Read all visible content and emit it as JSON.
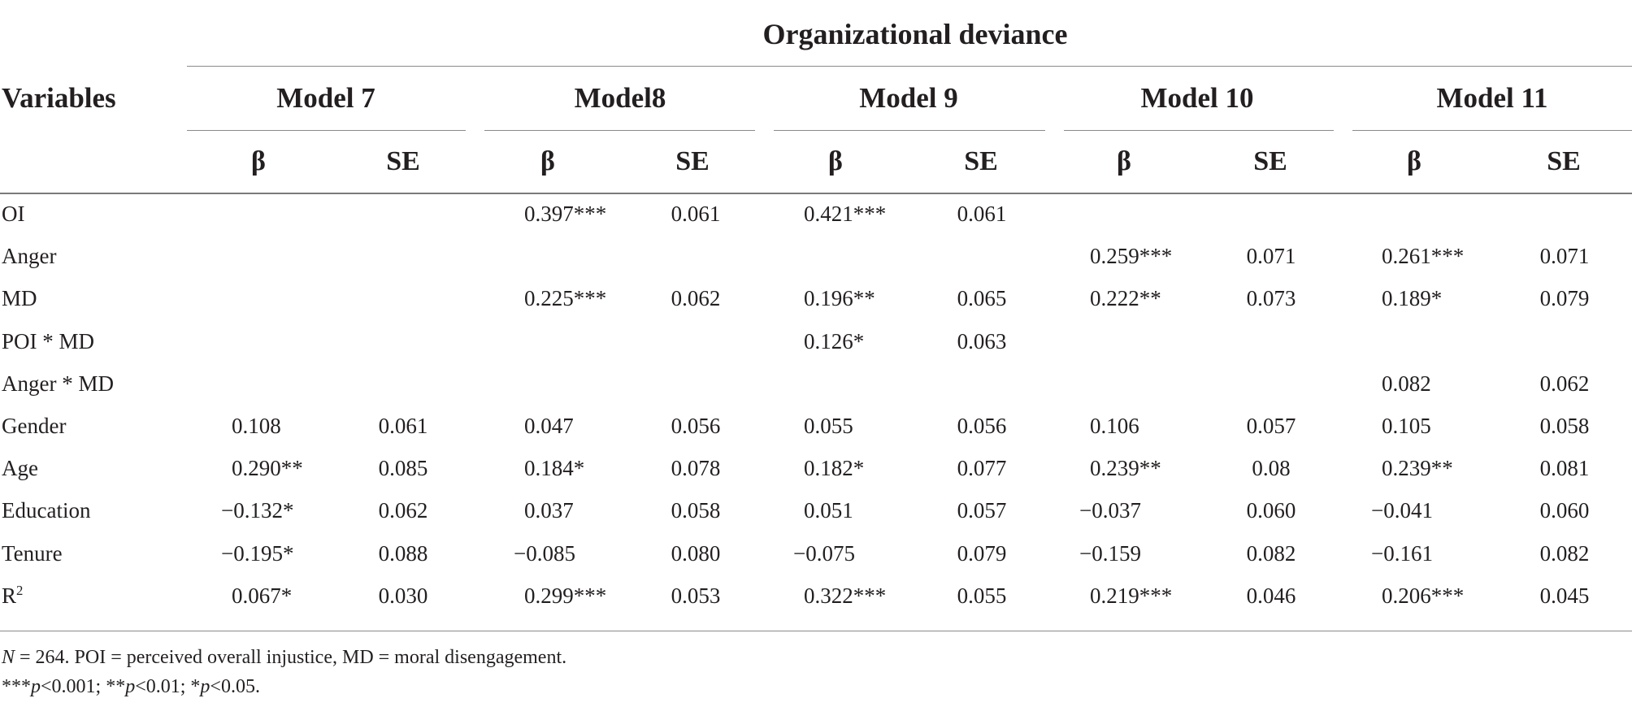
{
  "header": {
    "group_title": "Organizational deviance",
    "variables_label": "Variables",
    "models": [
      "Model 7",
      "Model8",
      "Model 9",
      "Model 10",
      "Model 11"
    ],
    "beta_label": "β",
    "se_label": "SE"
  },
  "rows": [
    {
      "label": "OI",
      "cells": [
        "",
        "",
        "0.397***",
        "0.061",
        "0.421***",
        "0.061",
        "",
        "",
        "",
        ""
      ]
    },
    {
      "label": "Anger",
      "cells": [
        "",
        "",
        "",
        "",
        "",
        "",
        "0.259***",
        "0.071",
        "0.261***",
        "0.071"
      ]
    },
    {
      "label": "MD",
      "cells": [
        "",
        "",
        "0.225***",
        "0.062",
        "0.196**",
        "0.065",
        "0.222**",
        "0.073",
        "0.189*",
        "0.079"
      ]
    },
    {
      "label": "POI * MD",
      "cells": [
        "",
        "",
        "",
        "",
        "0.126*",
        "0.063",
        "",
        "",
        "",
        ""
      ]
    },
    {
      "label": "Anger * MD",
      "cells": [
        "",
        "",
        "",
        "",
        "",
        "",
        "",
        "",
        "0.082",
        "0.062"
      ]
    },
    {
      "label": "Gender",
      "cells": [
        "0.108",
        "0.061",
        "0.047",
        "0.056",
        "0.055",
        "0.056",
        "0.106",
        "0.057",
        "0.105",
        "0.058"
      ]
    },
    {
      "label": "Age",
      "cells": [
        "0.290**",
        "0.085",
        "0.184*",
        "0.078",
        "0.182*",
        "0.077",
        "0.239**",
        "0.08",
        "0.239**",
        "0.081"
      ]
    },
    {
      "label": "Education",
      "cells": [
        "−0.132*",
        "0.062",
        "0.037",
        "0.058",
        "0.051",
        "0.057",
        "−0.037",
        "0.060",
        "−0.041",
        "0.060"
      ]
    },
    {
      "label": "Tenure",
      "cells": [
        "−0.195*",
        "0.088",
        "−0.085",
        "0.080",
        "−0.075",
        "0.079",
        "−0.159",
        "0.082",
        "−0.161",
        "0.082"
      ]
    },
    {
      "label": "R",
      "label_sup": "2",
      "cells": [
        "0.067*",
        "0.030",
        "0.299***",
        "0.053",
        "0.322***",
        "0.055",
        "0.219***",
        "0.046",
        "0.206***",
        "0.045"
      ]
    }
  ],
  "notes": {
    "line1_n": "N",
    "line1_rest": " = 264. POI = perceived overall injustice, MD = moral disengagement.",
    "line2": {
      "s1": "***",
      "p1": "p",
      "r1": "<0.001;  ",
      "s2": "**",
      "p2": "p",
      "r2": "<0.01;  ",
      "s3": "*",
      "p3": "p",
      "r3": "<0.05."
    }
  }
}
